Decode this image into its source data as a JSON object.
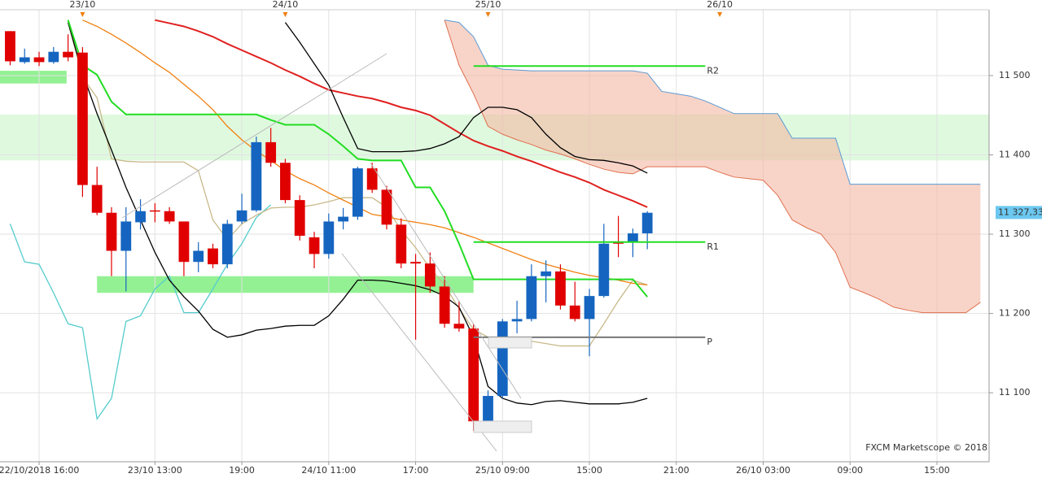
{
  "chart_data": {
    "type": "candlestick",
    "watermark": "FXCM Marketscope © 2018",
    "categories": [
      null,
      null,
      null,
      null,
      null,
      null,
      null,
      null,
      null,
      null,
      null,
      null,
      null,
      null,
      null,
      null,
      null,
      null,
      null,
      null,
      null,
      null,
      null,
      null,
      null,
      null,
      null,
      null,
      null,
      null,
      null,
      null,
      null,
      null,
      null,
      null,
      null,
      null,
      null,
      null,
      null,
      null,
      null,
      null,
      null,
      null,
      null,
      null,
      null,
      null,
      null,
      null,
      null,
      null,
      null,
      null,
      null,
      null,
      null,
      null,
      null,
      null,
      null,
      null,
      null,
      null,
      null,
      null
    ],
    "xlim": [
      -0.7,
      67.6
    ],
    "xticks": [
      {
        "value": 2,
        "label": "22/10/2018 16:00"
      },
      {
        "value": 10,
        "label": "23/10 13:00"
      },
      {
        "value": 16,
        "label": "19:00"
      },
      {
        "value": 22,
        "label": "24/10 11:00"
      },
      {
        "value": 28,
        "label": "17:00"
      },
      {
        "value": 34,
        "label": "25/10 09:00"
      },
      {
        "value": 40,
        "label": "15:00"
      },
      {
        "value": 46,
        "label": "21:00"
      },
      {
        "value": 52,
        "label": "26/10 03:00"
      },
      {
        "value": 58,
        "label": "09:00"
      },
      {
        "value": 64,
        "label": "15:00"
      }
    ],
    "day_markers": [
      {
        "value": 5,
        "label": "23/10"
      },
      {
        "value": 19,
        "label": "24/10"
      },
      {
        "value": 33,
        "label": "25/10"
      },
      {
        "value": 49,
        "label": "26/10"
      }
    ],
    "ylim": [
      11013,
      11583
    ],
    "yticks": [
      {
        "value": 11100,
        "label": "11 100"
      },
      {
        "value": 11200,
        "label": "11 200"
      },
      {
        "value": 11300,
        "label": "11 300"
      },
      {
        "value": 11400,
        "label": "11 400"
      },
      {
        "value": 11500,
        "label": "11 500"
      }
    ],
    "grid": true,
    "up_color": "#1565c0",
    "down_color": "#e00000",
    "open": [
      11556,
      11517,
      11523,
      11517,
      11530,
      11529,
      11362,
      11327,
      11279,
      11315,
      11330,
      11329,
      11316,
      11265,
      11282,
      11262,
      11316,
      11330,
      11416,
      11390,
      11343,
      11296,
      11275,
      11316,
      11322,
      11383,
      11356,
      11312,
      11265,
      11263,
      11234,
      11187,
      11181,
      11064,
      11096,
      11190,
      11193,
      11247,
      11253,
      11210,
      11193,
      11222,
      11290,
      11290,
      11301,
      null,
      null,
      null,
      null,
      null,
      null,
      null,
      null,
      null,
      null,
      null,
      null,
      null,
      null,
      null,
      null,
      null,
      null,
      null,
      null,
      null,
      null,
      null
    ],
    "high": [
      11556,
      11534,
      11530,
      11536,
      11552,
      11536,
      11385,
      11334,
      11334,
      11344,
      11339,
      11334,
      11316,
      11290,
      11288,
      11318,
      11351,
      11423,
      11434,
      11395,
      11349,
      11303,
      11326,
      11333,
      11385,
      11390,
      11361,
      11320,
      11275,
      11277,
      11247,
      11216,
      11187,
      11103,
      11193,
      11216,
      11262,
      11267,
      11262,
      11240,
      11231,
      11313,
      11323,
      11307,
      11329,
      null,
      null,
      null,
      null,
      null,
      null,
      null,
      null,
      null,
      null,
      null,
      null,
      null,
      null,
      null,
      null,
      null,
      null,
      null,
      null,
      null,
      null,
      null
    ],
    "low": [
      11513,
      11515,
      11512,
      11515,
      11518,
      11347,
      11324,
      11247,
      11228,
      11306,
      11315,
      11313,
      11247,
      11252,
      11257,
      11257,
      11313,
      11328,
      11385,
      11339,
      11292,
      11257,
      11269,
      11306,
      11318,
      11352,
      11306,
      11257,
      11167,
      11226,
      11182,
      11177,
      11052,
      11062,
      11093,
      11175,
      11190,
      11214,
      11205,
      11190,
      11146,
      11220,
      11271,
      11271,
      11281,
      null,
      null,
      null,
      null,
      null,
      null,
      null,
      null,
      null,
      null,
      null,
      null,
      null,
      null,
      null,
      null,
      null,
      null,
      null,
      null,
      null,
      null,
      null
    ],
    "close": [
      11518,
      11523,
      11517,
      11530,
      11523,
      11362,
      11327,
      11279,
      11316,
      11329,
      11329,
      11316,
      11265,
      11279,
      11262,
      11313,
      11330,
      11416,
      11390,
      11343,
      11298,
      11275,
      11316,
      11322,
      11383,
      11356,
      11312,
      11263,
      11263,
      11234,
      11187,
      11181,
      11064,
      11096,
      11190,
      11193,
      11247,
      11253,
      11210,
      11193,
      11222,
      11288,
      11288,
      11301,
      11327,
      null,
      null,
      null,
      null,
      null,
      null,
      null,
      null,
      null,
      null,
      null,
      null,
      null,
      null,
      null,
      null,
      null,
      null,
      null,
      null,
      null,
      null,
      null
    ],
    "series": [
      {
        "color": "#55cccc",
        "values": [
          11313,
          11265,
          11262,
          11226,
          11187,
          11182,
          11067,
          11093,
          11190,
          11197,
          11231,
          11247,
          11201,
          11201,
          11231,
          11262,
          11288,
          11321,
          11337,
          null,
          null,
          null,
          null,
          null,
          null,
          null,
          null,
          null,
          null,
          null,
          null,
          null,
          null,
          null,
          null,
          null,
          null,
          null,
          null,
          null,
          null,
          null,
          null,
          null,
          null,
          null,
          null,
          null,
          null,
          null,
          null,
          null,
          null,
          null,
          null,
          null,
          null,
          null,
          null,
          null,
          null,
          null,
          null,
          null,
          null,
          null,
          null,
          null
        ]
      },
      {
        "color": "#c8b98a",
        "values": [
          null,
          null,
          null,
          null,
          11567,
          11498,
          11472,
          11395,
          11392,
          11391,
          11391,
          11391,
          11391,
          11380,
          11318,
          11293,
          11313,
          11324,
          11333,
          11334,
          11334,
          11337,
          11341,
          11346,
          11346,
          11346,
          11334,
          11305,
          11283,
          11257,
          11236,
          11206,
          11180,
          11170,
          11168,
          11167,
          11165,
          11162,
          11159,
          11159,
          11159,
          11187,
          11216,
          11242,
          11236,
          null,
          null,
          null,
          null,
          null,
          null,
          null,
          null,
          null,
          null,
          null,
          null,
          null,
          null,
          null,
          null,
          null,
          null,
          null,
          null,
          null,
          null,
          null
        ]
      },
      {
        "color": "#f08010",
        "values": [
          null,
          null,
          null,
          null,
          null,
          11570,
          11562,
          11552,
          11541,
          11529,
          11516,
          11504,
          11489,
          11474,
          11457,
          11436,
          11419,
          11405,
          11393,
          11380,
          11370,
          11362,
          11352,
          11343,
          11334,
          11325,
          11322,
          11318,
          11315,
          11312,
          11308,
          11302,
          11296,
          11289,
          11282,
          11275,
          11268,
          11262,
          11257,
          11252,
          11248,
          11245,
          11242,
          11238,
          11236,
          null,
          null,
          null,
          null,
          null,
          null,
          null,
          null,
          null,
          null,
          null,
          null,
          null,
          null,
          null,
          null,
          null,
          null,
          null,
          null,
          null,
          null,
          null
        ]
      },
      {
        "color": "#e02020",
        "values": [
          null,
          null,
          null,
          null,
          null,
          null,
          null,
          null,
          null,
          null,
          11570,
          11566,
          11562,
          11556,
          11549,
          11540,
          11532,
          11524,
          11516,
          11507,
          11499,
          11490,
          11482,
          11478,
          11474,
          11471,
          11466,
          11460,
          11456,
          11450,
          11439,
          11428,
          11418,
          11411,
          11405,
          11398,
          11392,
          11385,
          11378,
          11372,
          11365,
          11356,
          11349,
          11342,
          11334,
          null,
          null,
          null,
          null,
          null,
          null,
          null,
          null,
          null,
          null,
          null,
          null,
          null,
          null,
          null,
          null,
          null,
          null,
          null,
          null,
          null,
          null,
          null
        ]
      },
      {
        "color": "#000000",
        "values": [
          null,
          null,
          null,
          null,
          11567,
          11503,
          11452,
          11406,
          11359,
          11318,
          11277,
          11242,
          11221,
          11203,
          11180,
          11170,
          11173,
          11179,
          11181,
          11184,
          11185,
          11185,
          11197,
          11218,
          11242,
          11242,
          11241,
          11238,
          11235,
          11230,
          11222,
          11208,
          11170,
          11108,
          11093,
          11087,
          11085,
          11089,
          11090,
          11088,
          11086,
          11086,
          11086,
          11088,
          11093,
          null,
          null,
          null,
          null,
          null,
          null,
          null,
          null,
          null,
          null,
          null,
          null,
          null,
          null,
          null,
          null,
          null,
          null,
          null,
          null,
          null,
          null,
          null
        ]
      },
      {
        "color": "#000000",
        "values": [
          null,
          null,
          null,
          null,
          null,
          null,
          null,
          null,
          null,
          null,
          null,
          null,
          null,
          null,
          null,
          null,
          null,
          null,
          null,
          11567,
          11542,
          11515,
          11488,
          11447,
          11408,
          11404,
          11404,
          11404,
          11405,
          11408,
          11414,
          11423,
          11447,
          11460,
          11460,
          11457,
          11447,
          11426,
          11409,
          11398,
          11394,
          11393,
          11390,
          11386,
          11377,
          null,
          null,
          null,
          null,
          null,
          null,
          null,
          null,
          null,
          null,
          null,
          null,
          null,
          null,
          null,
          null,
          null,
          null,
          null,
          null,
          null,
          null,
          null
        ]
      },
      {
        "color": "#22dd22",
        "values": [
          null,
          null,
          null,
          null,
          11570,
          11513,
          11501,
          11467,
          11451,
          11451,
          11451,
          11451,
          11451,
          11451,
          11451,
          11451,
          11451,
          11451,
          11444,
          11438,
          11438,
          11438,
          11426,
          11411,
          11395,
          11393,
          11393,
          11393,
          11359,
          11359,
          11329,
          11288,
          11243,
          11243,
          11243,
          11243,
          11243,
          11243,
          11243,
          11243,
          11243,
          11243,
          11243,
          11243,
          11221,
          null,
          null,
          null,
          null,
          null,
          null,
          null,
          null,
          null,
          null,
          null,
          null,
          null,
          null,
          null,
          null,
          null,
          null,
          null,
          null,
          null,
          null,
          null
        ]
      }
    ],
    "cloud": {
      "fill": "#f4b8a4",
      "upper_color": "#5b9bd5",
      "lower_color": "#e0704f",
      "upper": [
        null,
        null,
        null,
        null,
        null,
        null,
        null,
        null,
        null,
        null,
        null,
        null,
        null,
        null,
        null,
        null,
        null,
        null,
        null,
        null,
        null,
        null,
        null,
        null,
        null,
        null,
        null,
        null,
        null,
        null,
        11570,
        11567,
        11549,
        11513,
        11508,
        11507,
        11506,
        11506,
        11506,
        11506,
        11506,
        11506,
        11506,
        11506,
        11503,
        11480,
        11477,
        11474,
        11468,
        11460,
        11452,
        11452,
        11452,
        11452,
        11421,
        11421,
        11421,
        11421,
        11363,
        11363,
        11363,
        11363,
        11363,
        11363,
        11363,
        11363,
        11363,
        11363
      ],
      "lower": [
        null,
        null,
        null,
        null,
        null,
        null,
        null,
        null,
        null,
        null,
        null,
        null,
        null,
        null,
        null,
        null,
        null,
        null,
        null,
        null,
        null,
        null,
        null,
        null,
        null,
        null,
        null,
        null,
        null,
        null,
        11570,
        11513,
        11477,
        11436,
        11426,
        11419,
        11413,
        11406,
        11401,
        11395,
        11388,
        11382,
        11378,
        11376,
        11385,
        11385,
        11385,
        11385,
        11385,
        11378,
        11372,
        11370,
        11368,
        11349,
        11318,
        11308,
        11300,
        11277,
        11233,
        11226,
        11218,
        11208,
        11204,
        11201,
        11201,
        11201,
        11201,
        11214
      ]
    },
    "zones": [
      {
        "low": 11393,
        "high": 11451,
        "start": -0.7,
        "end": 67.6,
        "color": "#d9f8d9"
      },
      {
        "low": 11490,
        "high": 11506,
        "start": -0.7,
        "end": 3.9,
        "color": "#80ee80"
      },
      {
        "low": 11226,
        "high": 11247,
        "start": 6,
        "end": 32,
        "color": "#80ee80"
      }
    ],
    "pivots": [
      {
        "label": "R2",
        "value": 11512,
        "start": 32,
        "end": 48,
        "color": "#22dd22"
      },
      {
        "label": "R1",
        "value": 11290,
        "start": 32,
        "end": 48,
        "color": "#22dd22"
      },
      {
        "label": "P",
        "value": 11170,
        "start": 32,
        "end": 48,
        "color": "#777777"
      }
    ],
    "last_price": {
      "value": 11327.33,
      "label": "11 327,33",
      "color": "#6cc8f0"
    }
  }
}
